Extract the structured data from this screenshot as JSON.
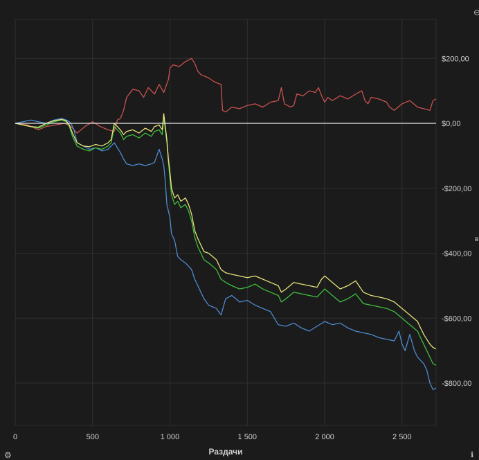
{
  "chart_data": {
    "type": "line",
    "title": "",
    "xlabel": "Раздачи",
    "ylabel": "",
    "xlim": [
      0,
      2720
    ],
    "ylim": [
      -930,
      320
    ],
    "grid": true,
    "legend": "none",
    "x_ticks": [
      0,
      500,
      1000,
      1500,
      2000,
      2500
    ],
    "x_tick_labels": [
      "0",
      "500",
      "1 000",
      "1 500",
      "2 000",
      "2 500"
    ],
    "y_ticks": [
      200,
      0,
      -200,
      -400,
      -600,
      -800
    ],
    "y_tick_labels": [
      "$200,00",
      "$0,00",
      "-$200,00",
      "-$400,00",
      "-$600,00",
      "-$800,00"
    ],
    "zero_line": true,
    "series": [
      {
        "color": "#c9524f",
        "x": [
          0,
          80,
          150,
          200,
          260,
          320,
          360,
          400,
          450,
          500,
          550,
          600,
          640,
          660,
          680,
          700,
          720,
          760,
          800,
          830,
          860,
          900,
          930,
          960,
          990,
          1000,
          1020,
          1060,
          1100,
          1140,
          1160,
          1180,
          1200,
          1250,
          1280,
          1300,
          1330,
          1340,
          1360,
          1400,
          1450,
          1500,
          1550,
          1600,
          1650,
          1700,
          1720,
          1740,
          1780,
          1800,
          1820,
          1860,
          1900,
          1940,
          1960,
          1980,
          2000,
          2020,
          2050,
          2100,
          2150,
          2200,
          2240,
          2260,
          2280,
          2300,
          2350,
          2400,
          2420,
          2450,
          2500,
          2550,
          2600,
          2640,
          2680,
          2700,
          2720
        ],
        "y": [
          0,
          -5,
          -20,
          -10,
          -5,
          0,
          -10,
          -30,
          -10,
          5,
          -10,
          -20,
          -25,
          10,
          15,
          40,
          80,
          105,
          100,
          80,
          110,
          90,
          120,
          95,
          135,
          170,
          180,
          175,
          190,
          200,
          185,
          160,
          150,
          140,
          130,
          125,
          120,
          40,
          35,
          50,
          45,
          55,
          60,
          50,
          65,
          70,
          110,
          60,
          50,
          55,
          90,
          85,
          100,
          95,
          110,
          85,
          65,
          80,
          70,
          85,
          75,
          90,
          100,
          70,
          60,
          80,
          75,
          65,
          50,
          40,
          60,
          70,
          50,
          45,
          40,
          70,
          75
        ]
      },
      {
        "color": "#4d8bd1",
        "x": [
          0,
          50,
          100,
          150,
          200,
          250,
          300,
          330,
          350,
          360,
          380,
          400,
          440,
          480,
          520,
          560,
          600,
          620,
          640,
          660,
          680,
          700,
          720,
          760,
          800,
          840,
          880,
          900,
          930,
          950,
          960,
          970,
          980,
          990,
          1000,
          1010,
          1030,
          1050,
          1070,
          1100,
          1120,
          1140,
          1160,
          1180,
          1200,
          1220,
          1250,
          1300,
          1330,
          1360,
          1400,
          1450,
          1500,
          1550,
          1600,
          1650,
          1700,
          1750,
          1800,
          1850,
          1900,
          1950,
          2000,
          2050,
          2100,
          2150,
          2200,
          2250,
          2300,
          2350,
          2400,
          2450,
          2480,
          2500,
          2520,
          2550,
          2580,
          2600,
          2640,
          2660,
          2680,
          2700,
          2720
        ],
        "y": [
          0,
          5,
          10,
          5,
          0,
          10,
          15,
          10,
          5,
          0,
          -20,
          -60,
          -70,
          -80,
          -75,
          -85,
          -80,
          -70,
          -60,
          -75,
          -90,
          -110,
          -125,
          -130,
          -125,
          -130,
          -125,
          -120,
          -80,
          -110,
          -130,
          -180,
          -250,
          -270,
          -290,
          -340,
          -360,
          -410,
          -420,
          -430,
          -440,
          -450,
          -480,
          -500,
          -520,
          -540,
          -560,
          -570,
          -590,
          -540,
          -530,
          -550,
          -545,
          -560,
          -570,
          -580,
          -620,
          -625,
          -615,
          -630,
          -640,
          -625,
          -610,
          -620,
          -615,
          -630,
          -640,
          -645,
          -650,
          -660,
          -665,
          -670,
          -640,
          -680,
          -700,
          -650,
          -700,
          -720,
          -740,
          -760,
          -800,
          -820,
          -815
        ]
      },
      {
        "color": "#3fbf3f",
        "x": [
          0,
          50,
          100,
          150,
          200,
          250,
          300,
          330,
          350,
          370,
          400,
          440,
          480,
          520,
          560,
          600,
          620,
          640,
          660,
          680,
          700,
          720,
          760,
          800,
          840,
          880,
          900,
          930,
          950,
          960,
          970,
          980,
          990,
          1000,
          1010,
          1030,
          1050,
          1070,
          1100,
          1120,
          1140,
          1160,
          1180,
          1200,
          1220,
          1250,
          1300,
          1330,
          1360,
          1400,
          1450,
          1500,
          1550,
          1600,
          1650,
          1700,
          1720,
          1750,
          1800,
          1850,
          1900,
          1950,
          1980,
          2000,
          2050,
          2100,
          2150,
          2200,
          2250,
          2300,
          2350,
          2400,
          2450,
          2500,
          2550,
          2600,
          2620,
          2640,
          2660,
          2680,
          2700,
          2720
        ],
        "y": [
          0,
          -5,
          -10,
          -15,
          -5,
          5,
          10,
          5,
          -10,
          -40,
          -70,
          -80,
          -85,
          -75,
          -80,
          -70,
          -60,
          -10,
          -20,
          -30,
          -50,
          -40,
          -35,
          -45,
          -30,
          -40,
          -25,
          -20,
          -35,
          20,
          -20,
          -60,
          -120,
          -170,
          -220,
          -250,
          -240,
          -260,
          -250,
          -270,
          -300,
          -350,
          -380,
          -400,
          -420,
          -430,
          -450,
          -480,
          -490,
          -500,
          -510,
          -505,
          -495,
          -510,
          -520,
          -530,
          -550,
          -540,
          -520,
          -525,
          -530,
          -535,
          -520,
          -510,
          -530,
          -550,
          -540,
          -525,
          -555,
          -560,
          -565,
          -570,
          -580,
          -600,
          -620,
          -640,
          -660,
          -680,
          -700,
          -720,
          -740,
          -745
        ]
      },
      {
        "color": "#e6e27a",
        "x": [
          0,
          50,
          100,
          150,
          200,
          250,
          300,
          330,
          350,
          370,
          400,
          440,
          480,
          520,
          560,
          600,
          620,
          640,
          660,
          680,
          700,
          720,
          760,
          800,
          840,
          880,
          900,
          930,
          950,
          960,
          970,
          980,
          990,
          1000,
          1010,
          1030,
          1050,
          1070,
          1100,
          1120,
          1140,
          1160,
          1180,
          1200,
          1220,
          1250,
          1300,
          1330,
          1360,
          1400,
          1450,
          1500,
          1550,
          1600,
          1650,
          1700,
          1720,
          1750,
          1800,
          1850,
          1900,
          1950,
          1980,
          2000,
          2050,
          2100,
          2150,
          2200,
          2250,
          2300,
          2350,
          2400,
          2450,
          2500,
          2550,
          2600,
          2620,
          2640,
          2660,
          2680,
          2700,
          2720
        ],
        "y": [
          0,
          -5,
          -10,
          -12,
          0,
          8,
          12,
          8,
          -5,
          -30,
          -60,
          -70,
          -72,
          -65,
          -70,
          -60,
          -50,
          0,
          -10,
          -20,
          -35,
          -25,
          -20,
          -30,
          -15,
          -25,
          -10,
          -5,
          -20,
          30,
          -10,
          -50,
          -110,
          -150,
          -200,
          -230,
          -220,
          -240,
          -230,
          -250,
          -280,
          -330,
          -355,
          -375,
          -395,
          -400,
          -420,
          -450,
          -460,
          -465,
          -470,
          -475,
          -470,
          -480,
          -490,
          -500,
          -520,
          -510,
          -490,
          -495,
          -500,
          -505,
          -480,
          -470,
          -490,
          -510,
          -500,
          -485,
          -520,
          -530,
          -535,
          -540,
          -550,
          -570,
          -590,
          -610,
          -630,
          -650,
          -665,
          -680,
          -690,
          -695
        ]
      }
    ]
  },
  "icons": {
    "top_right": "circle-minus-icon",
    "bottom_left": "gear-icon",
    "bottom_right": "info-icon"
  }
}
